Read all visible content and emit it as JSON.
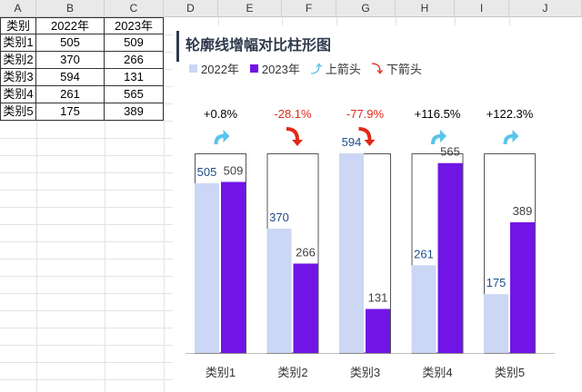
{
  "columns": [
    "A",
    "B",
    "C",
    "D",
    "E",
    "F",
    "G",
    "H",
    "I",
    "J"
  ],
  "table": {
    "headers": [
      "类别",
      "2022年",
      "2023年"
    ],
    "rows": [
      [
        "类别1",
        "505",
        "509"
      ],
      [
        "类别2",
        "370",
        "266"
      ],
      [
        "类别3",
        "594",
        "131"
      ],
      [
        "类别4",
        "261",
        "565"
      ],
      [
        "类别5",
        "175",
        "389"
      ]
    ]
  },
  "chart": {
    "title": "轮廓线增幅对比柱形图",
    "legend": {
      "series2022": "2022年",
      "series2023": "2023年",
      "up": "上箭头",
      "down": "下箭头"
    }
  },
  "colors": {
    "series2022": "#ccd6f5",
    "series2023": "#7015e6",
    "up": "#5bc4ea",
    "down": "#e0291b",
    "label2022": "#1f4e8c",
    "label2023": "#404040"
  },
  "chart_data": {
    "type": "bar",
    "title": "轮廓线增幅对比柱形图",
    "categories": [
      "类别1",
      "类别2",
      "类别3",
      "类别4",
      "类别5"
    ],
    "series": [
      {
        "name": "2022年",
        "values": [
          505,
          370,
          594,
          261,
          175
        ]
      },
      {
        "name": "2023年",
        "values": [
          509,
          266,
          131,
          565,
          389
        ]
      }
    ],
    "outline_values": [
      594,
      594,
      594,
      594,
      594
    ],
    "changes": [
      "+0.8%",
      "-28.1%",
      "-77.9%",
      "+116.5%",
      "+122.3%"
    ],
    "directions": [
      "up",
      "down",
      "down",
      "up",
      "up"
    ],
    "ylim": [
      0,
      594
    ],
    "grid": false,
    "legend_position": "top-left"
  }
}
